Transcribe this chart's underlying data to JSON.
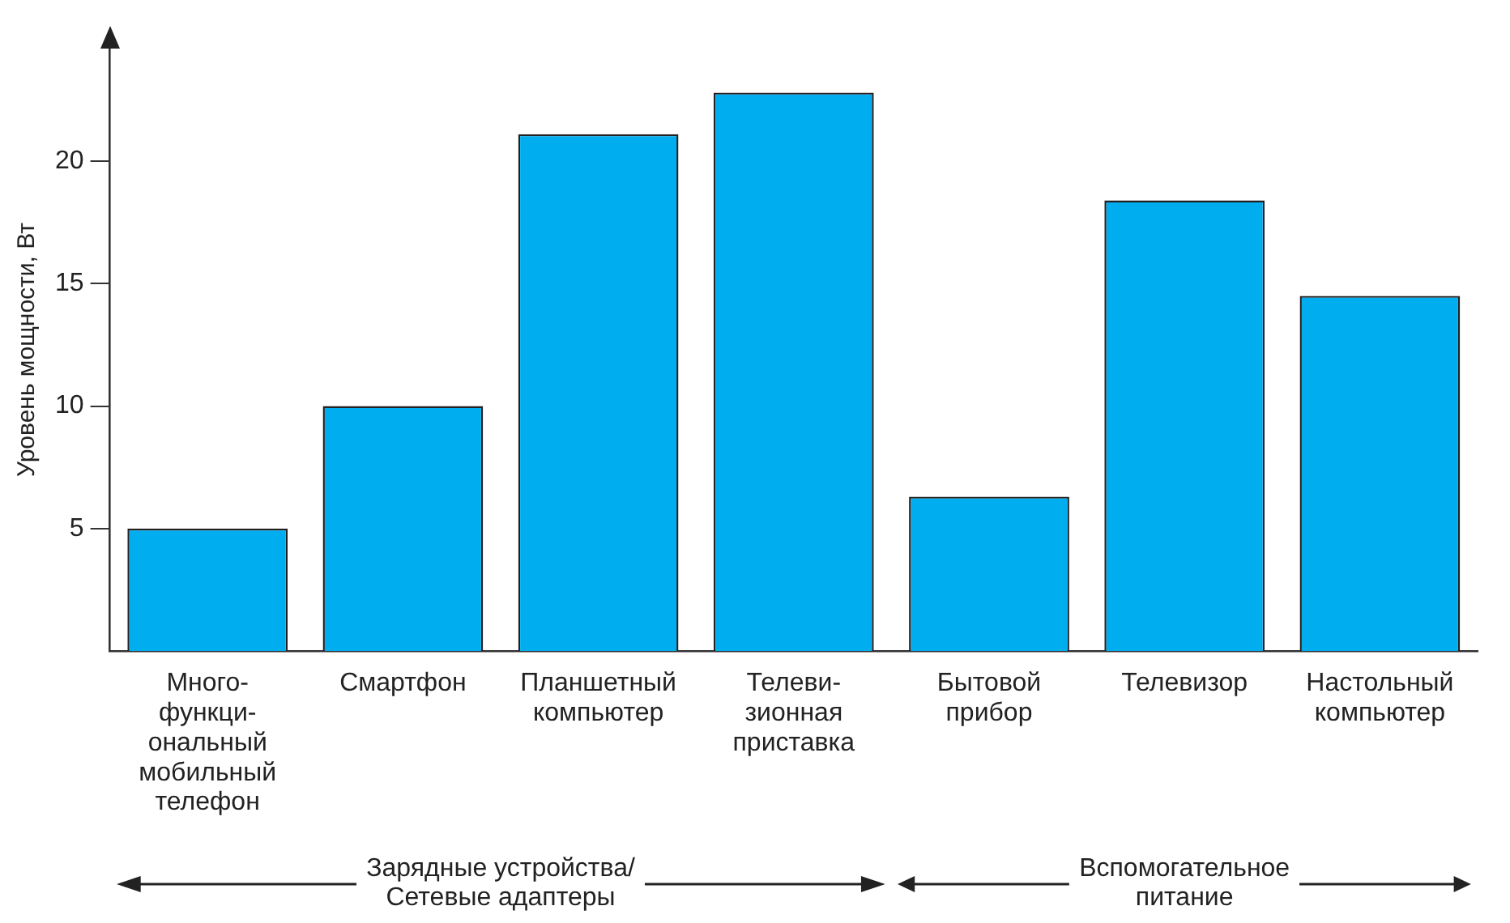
{
  "chart_data": {
    "type": "bar",
    "ylabel": "Уровень мощности, Вт",
    "categories": [
      "Много-\nфункци-\nональный\nмобильный\nтелефон",
      "Смартфон",
      "Планшетный\nкомпьютер",
      "Телеви-\nзионная\nприставка",
      "Бытовой\nприбор",
      "Телевизор",
      "Настольный\nкомпьютер"
    ],
    "values": [
      5.0,
      10.0,
      21.1,
      22.8,
      6.3,
      18.4,
      14.5
    ],
    "color": "#00aeef",
    "ylim": [
      0,
      24.6
    ],
    "yticks": [
      5,
      10,
      15,
      20
    ],
    "grid": false,
    "legend": false,
    "annotations": [
      "Зарядные устройства/\nСетевые адаптеры",
      "Вспомогательное\nпитание"
    ]
  }
}
